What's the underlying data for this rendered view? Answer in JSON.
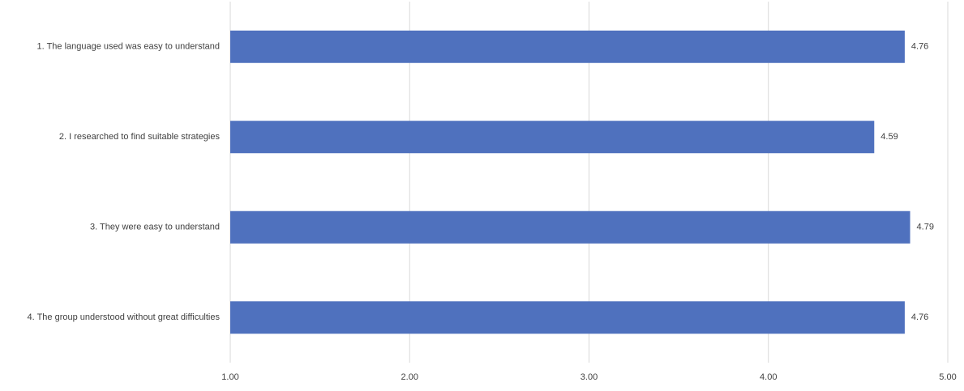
{
  "chart_data": {
    "type": "bar",
    "orientation": "horizontal",
    "categories": [
      "1. The language used was easy to understand",
      "2. I researched to find suitable strategies",
      "3. They were easy to understand",
      "4. The group understood without great difficulties"
    ],
    "values": [
      4.76,
      4.59,
      4.79,
      4.76
    ],
    "color": "#4f71be",
    "xlim": [
      1,
      5
    ],
    "xticks": [
      {
        "value": 1,
        "label": "1.00"
      },
      {
        "value": 2,
        "label": "2.00"
      },
      {
        "value": 3,
        "label": "3.00"
      },
      {
        "value": 4,
        "label": "4.00"
      },
      {
        "value": 5,
        "label": "5.00"
      }
    ],
    "grid": true
  }
}
